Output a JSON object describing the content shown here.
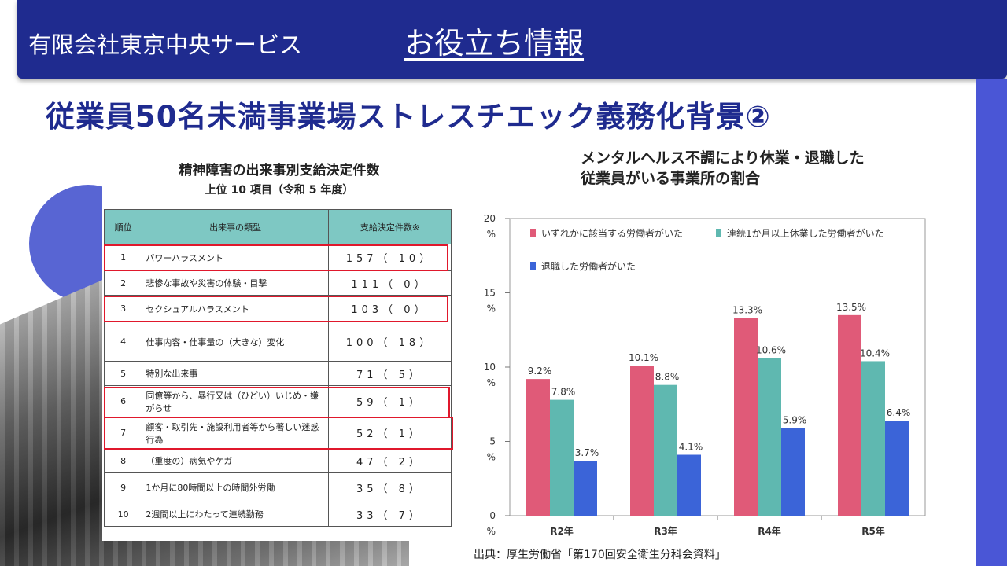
{
  "header": {
    "company": "有限会社東京中央サービス",
    "section": "お役立ち情報"
  },
  "main_title": "従業員50名未満事業場ストレスチエック義務化背景②",
  "table": {
    "title": "精神障害の出来事別支給決定件数",
    "subtitle": "上位 10 項目（令和 5 年度）",
    "headers": {
      "rank": "順位",
      "type": "出来事の類型",
      "count": "支給決定件数※"
    },
    "rows": [
      {
        "rank": "1",
        "type": "パワーハラスメント",
        "count": "157（ 10）"
      },
      {
        "rank": "2",
        "type": "悲惨な事故や災害の体験・目撃",
        "count": "111（ 0）"
      },
      {
        "rank": "3",
        "type": "セクシュアルハラスメント",
        "count": "103（ 0）"
      },
      {
        "rank": "4",
        "type": "仕事内容・仕事量の（大きな）変化",
        "count": "100（ 18）"
      },
      {
        "rank": "5",
        "type": "特別な出来事",
        "count": "71（ 5）"
      },
      {
        "rank": "6",
        "type": "同僚等から、暴行又は（ひどい）いじめ・嫌がらせ",
        "count": "59（ 1）"
      },
      {
        "rank": "7",
        "type": "顧客・取引先・施設利用者等から著しい迷惑行為",
        "count": "52（ 1）"
      },
      {
        "rank": "8",
        "type": "（重度の）病気やケガ",
        "count": "47（ 2）"
      },
      {
        "rank": "9",
        "type": "1か月に80時間以上の時間外労働",
        "count": "35（ 8）"
      },
      {
        "rank": "10",
        "type": "2週間以上にわたって連続勤務",
        "count": "33（ 7）"
      }
    ]
  },
  "chart_data": {
    "type": "bar",
    "title_line1": "メンタルヘルス不調により休業・退職した",
    "title_line2": "従業員がいる事業所の割合",
    "categories": [
      "R2年",
      "R3年",
      "R4年",
      "R5年"
    ],
    "series": [
      {
        "name": "いずれかに該当する労働者がいた",
        "color": "#e05a78",
        "values": [
          9.2,
          10.1,
          13.3,
          13.5
        ],
        "labels": [
          "9.2%",
          "10.1%",
          "13.3%",
          "13.5%"
        ]
      },
      {
        "name": "連続1か月以上休業した労働者がいた",
        "color": "#5fb8b0",
        "values": [
          7.8,
          8.8,
          10.6,
          10.4
        ],
        "labels": [
          "7.8%",
          "8.8%",
          "10.6%",
          "10.4%"
        ]
      },
      {
        "name": "退職した労働者がいた",
        "color": "#3b64d8",
        "values": [
          3.7,
          4.1,
          5.9,
          6.4
        ],
        "labels": [
          "3.7%",
          "4.1%",
          "5.9%",
          "6.4%"
        ]
      }
    ],
    "yticks": [
      {
        "value": 0,
        "label": "0",
        "unit": "%"
      },
      {
        "value": 5,
        "label": "5",
        "unit": "%"
      },
      {
        "value": 10,
        "label": "10",
        "unit": "%"
      },
      {
        "value": 15,
        "label": "15",
        "unit": "%"
      },
      {
        "value": 20,
        "label": "20",
        "unit": "%"
      }
    ],
    "ylim": [
      0,
      20
    ]
  },
  "source": "出典：厚生労働省「第170回安全衛生分科会資料」"
}
